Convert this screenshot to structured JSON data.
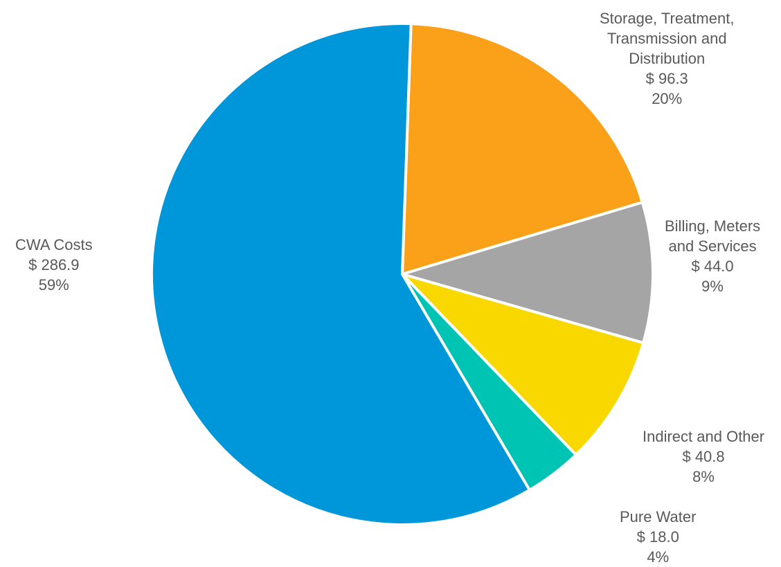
{
  "chart_data": {
    "type": "pie",
    "title": "",
    "slices": [
      {
        "label": "Storage, Treatment, Transmission and Distribution",
        "label_lines": [
          "Storage, Treatment,",
          "Transmission and",
          "Distribution"
        ],
        "value": 96.3,
        "value_text": "$ 96.3",
        "percent": 20,
        "percent_text": "20%",
        "color": "#FBA019"
      },
      {
        "label": "Billing, Meters and Services",
        "label_lines": [
          "Billing, Meters",
          "and Services"
        ],
        "value": 44.0,
        "value_text": "$ 44.0",
        "percent": 9,
        "percent_text": "9%",
        "color": "#A5A5A5"
      },
      {
        "label": "Indirect and Other",
        "label_lines": [
          "Indirect and Other"
        ],
        "value": 40.8,
        "value_text": "$ 40.8",
        "percent": 8,
        "percent_text": "8%",
        "color": "#F9D800"
      },
      {
        "label": "Pure Water",
        "label_lines": [
          "Pure Water"
        ],
        "value": 18.0,
        "value_text": "$ 18.0",
        "percent": 4,
        "percent_text": "4%",
        "color": "#00C4B3"
      },
      {
        "label": "CWA Costs",
        "label_lines": [
          "CWA Costs"
        ],
        "value": 286.9,
        "value_text": "$ 286.9",
        "percent": 59,
        "percent_text": "59%",
        "color": "#0096DA"
      }
    ],
    "start_angle_deg": 2,
    "direction": "clockwise",
    "legend": "none",
    "label_color": "#595959"
  }
}
